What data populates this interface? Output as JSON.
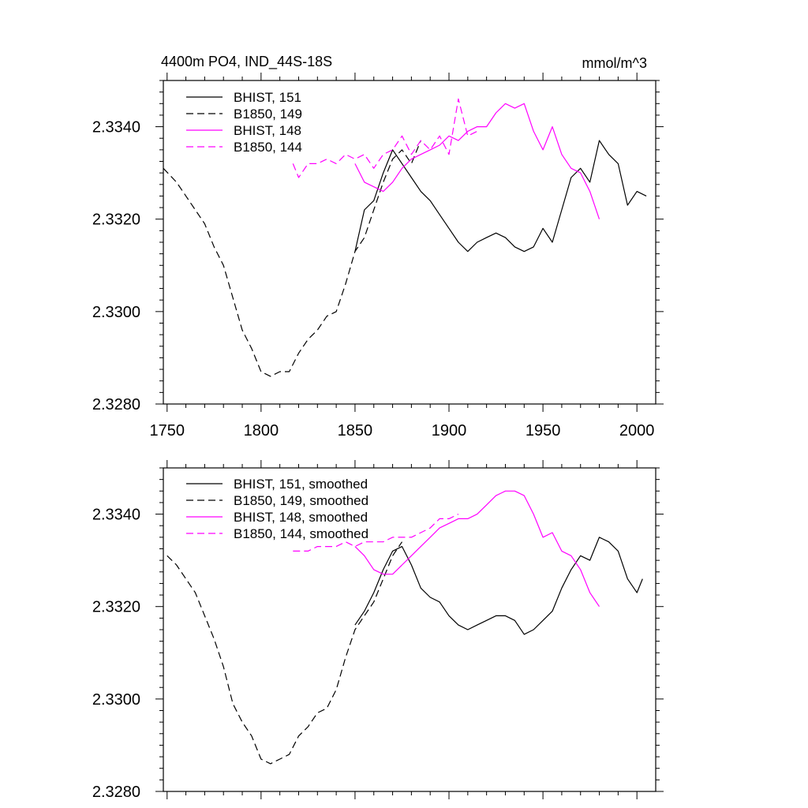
{
  "figure": {
    "title_left": "4400m PO4, IND_44S-18S",
    "title_right": "mmol/m^3"
  },
  "chart_data": [
    {
      "type": "line",
      "xlim": [
        1748,
        2010
      ],
      "ylim": [
        2.328,
        2.335
      ],
      "x_ticks": [
        1750,
        1800,
        1850,
        1900,
        1950,
        2000
      ],
      "x_tick_labels": [
        "1750",
        "1800",
        "1850",
        "1900",
        "1950",
        "2000"
      ],
      "x_tick_labels_shown": true,
      "y_ticks": [
        2.328,
        2.33,
        2.332,
        2.334
      ],
      "y_tick_labels": [
        "2.3280",
        "2.3300",
        "2.3320",
        "2.3340"
      ],
      "legend_position": "top-left",
      "series": [
        {
          "name": "BHIST, 151",
          "color": "#000000",
          "dash": "solid",
          "x": [
            1850,
            1855,
            1860,
            1865,
            1870,
            1875,
            1880,
            1885,
            1890,
            1895,
            1900,
            1905,
            1910,
            1915,
            1920,
            1925,
            1930,
            1935,
            1940,
            1945,
            1950,
            1955,
            1960,
            1965,
            1970,
            1975,
            1980,
            1985,
            1990,
            1995,
            2000,
            2005
          ],
          "y": [
            2.3313,
            2.3322,
            2.3324,
            2.333,
            2.3335,
            2.3332,
            2.3329,
            2.3326,
            2.3324,
            2.3321,
            2.3318,
            2.3315,
            2.3313,
            2.3315,
            2.3316,
            2.3317,
            2.3316,
            2.3314,
            2.3313,
            2.3314,
            2.3318,
            2.3315,
            2.3322,
            2.3329,
            2.3331,
            2.3328,
            2.3337,
            2.3334,
            2.3332,
            2.3323,
            2.3326,
            2.3325
          ]
        },
        {
          "name": "B1850, 149",
          "color": "#000000",
          "dash": "dashed",
          "x": [
            1748,
            1755,
            1760,
            1765,
            1770,
            1775,
            1780,
            1785,
            1790,
            1795,
            1800,
            1805,
            1810,
            1815,
            1820,
            1825,
            1830,
            1835,
            1840,
            1845,
            1850,
            1855,
            1860,
            1865,
            1870,
            1875,
            1880,
            1885
          ],
          "y": [
            2.3331,
            2.3328,
            2.3325,
            2.3322,
            2.3319,
            2.3314,
            2.331,
            2.3303,
            2.3296,
            2.3292,
            2.3287,
            2.3286,
            2.3287,
            2.3287,
            2.3291,
            2.3294,
            2.3296,
            2.3299,
            2.33,
            2.3306,
            2.3313,
            2.3316,
            2.3322,
            2.3328,
            2.3333,
            2.3335,
            2.3332,
            2.3337
          ]
        },
        {
          "name": "BHIST, 148",
          "color": "#ff00ff",
          "dash": "solid",
          "x": [
            1850,
            1855,
            1860,
            1865,
            1870,
            1875,
            1880,
            1885,
            1890,
            1895,
            1900,
            1905,
            1910,
            1915,
            1920,
            1925,
            1930,
            1935,
            1940,
            1945,
            1950,
            1955,
            1960,
            1965,
            1970,
            1975,
            1980
          ],
          "y": [
            2.3332,
            2.3328,
            2.3327,
            2.3326,
            2.3328,
            2.3331,
            2.3333,
            2.3334,
            2.3335,
            2.3336,
            2.3338,
            2.3337,
            2.3339,
            2.334,
            2.334,
            2.3343,
            2.3345,
            2.3344,
            2.3345,
            2.3339,
            2.3335,
            2.334,
            2.3334,
            2.3331,
            2.333,
            2.3326,
            2.332
          ]
        },
        {
          "name": "B1850, 144",
          "color": "#ff00ff",
          "dash": "dashed",
          "x": [
            1817,
            1820,
            1825,
            1830,
            1835,
            1840,
            1845,
            1850,
            1855,
            1860,
            1865,
            1870,
            1875,
            1880,
            1885,
            1890,
            1895,
            1900,
            1905,
            1910,
            1915
          ],
          "y": [
            2.3332,
            2.3329,
            2.3332,
            2.3332,
            2.3333,
            2.3332,
            2.3334,
            2.3333,
            2.3334,
            2.3331,
            2.3334,
            2.3335,
            2.3338,
            2.3334,
            2.3337,
            2.3335,
            2.3338,
            2.3334,
            2.3346,
            2.3338,
            2.3339
          ]
        }
      ]
    },
    {
      "type": "line",
      "xlim": [
        1748,
        2010
      ],
      "ylim": [
        2.328,
        2.335
      ],
      "x_ticks": [
        1750,
        1800,
        1850,
        1900,
        1950,
        2000
      ],
      "x_tick_labels_shown": false,
      "y_ticks": [
        2.328,
        2.33,
        2.332,
        2.334
      ],
      "y_tick_labels": [
        "2.3280",
        "2.3300",
        "2.3320",
        "2.3340"
      ],
      "legend_position": "top-left",
      "series": [
        {
          "name": "BHIST, 151, smoothed",
          "color": "#000000",
          "dash": "solid",
          "x": [
            1850,
            1855,
            1860,
            1865,
            1870,
            1875,
            1880,
            1885,
            1890,
            1895,
            1900,
            1905,
            1910,
            1915,
            1920,
            1925,
            1930,
            1935,
            1940,
            1945,
            1950,
            1955,
            1960,
            1965,
            1970,
            1975,
            1980,
            1985,
            1990,
            1995,
            2000,
            2003
          ],
          "y": [
            2.3316,
            2.3319,
            2.3323,
            2.3328,
            2.3332,
            2.3333,
            2.3329,
            2.3324,
            2.3322,
            2.3321,
            2.3318,
            2.3316,
            2.3315,
            2.3316,
            2.3317,
            2.3318,
            2.3318,
            2.3317,
            2.3314,
            2.3315,
            2.3317,
            2.3319,
            2.3324,
            2.3328,
            2.3331,
            2.333,
            2.3335,
            2.3334,
            2.3332,
            2.3326,
            2.3323,
            2.3326
          ]
        },
        {
          "name": "B1850, 149, smoothed",
          "color": "#000000",
          "dash": "dashed",
          "x": [
            1750,
            1755,
            1760,
            1765,
            1770,
            1775,
            1780,
            1785,
            1790,
            1795,
            1800,
            1805,
            1810,
            1815,
            1820,
            1825,
            1830,
            1835,
            1840,
            1845,
            1850,
            1855,
            1860,
            1865,
            1870,
            1875
          ],
          "y": [
            2.3331,
            2.3329,
            2.3326,
            2.3323,
            2.3318,
            2.3313,
            2.3307,
            2.3299,
            2.3295,
            2.3292,
            2.3287,
            2.3286,
            2.3287,
            2.3288,
            2.3292,
            2.3294,
            2.3297,
            2.3298,
            2.3302,
            2.3309,
            2.3315,
            2.3318,
            2.3321,
            2.3326,
            2.3331,
            2.3334
          ]
        },
        {
          "name": "BHIST, 148, smoothed",
          "color": "#ff00ff",
          "dash": "solid",
          "x": [
            1850,
            1855,
            1860,
            1865,
            1870,
            1875,
            1880,
            1885,
            1890,
            1895,
            1900,
            1905,
            1910,
            1915,
            1920,
            1925,
            1930,
            1935,
            1940,
            1945,
            1950,
            1955,
            1960,
            1965,
            1970,
            1975,
            1980
          ],
          "y": [
            2.3333,
            2.3331,
            2.3328,
            2.3327,
            2.3327,
            2.3329,
            2.3331,
            2.3333,
            2.3335,
            2.3337,
            2.3338,
            2.3339,
            2.3339,
            2.334,
            2.3342,
            2.3344,
            2.3345,
            2.3345,
            2.3344,
            2.334,
            2.3335,
            2.3336,
            2.3332,
            2.3331,
            2.3328,
            2.3323,
            2.332
          ]
        },
        {
          "name": "B1850, 144, smoothed",
          "color": "#ff00ff",
          "dash": "dashed",
          "x": [
            1817,
            1825,
            1830,
            1835,
            1840,
            1845,
            1850,
            1855,
            1860,
            1865,
            1870,
            1875,
            1880,
            1885,
            1890,
            1895,
            1900,
            1905
          ],
          "y": [
            2.3332,
            2.3332,
            2.3333,
            2.3333,
            2.3333,
            2.3334,
            2.3333,
            2.3334,
            2.3334,
            2.3334,
            2.3335,
            2.3335,
            2.3335,
            2.3336,
            2.3337,
            2.3339,
            2.3339,
            2.334
          ]
        }
      ]
    }
  ]
}
